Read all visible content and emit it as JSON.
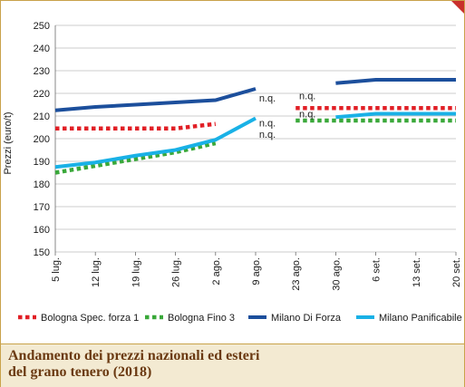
{
  "chart_data": {
    "type": "line",
    "ylabel": "Prezzi (euro/t)",
    "ylim": [
      150,
      250
    ],
    "yticks": [
      150,
      160,
      170,
      180,
      190,
      200,
      210,
      220,
      230,
      240,
      250
    ],
    "categories": [
      "5 lug.",
      "12 lug.",
      "19 lug.",
      "26 lug.",
      "2 ago.",
      "9 ago.",
      "23 ago.",
      "30 ago.",
      "6 set.",
      "13 set.",
      "20 set."
    ],
    "grid": "horizontal",
    "legend": "bottom",
    "series": [
      {
        "name": "Bologna Spec. forza 1",
        "color": "#e11f26",
        "style": "dotted",
        "values": [
          204.5,
          204.5,
          204.5,
          204.5,
          206.5,
          null,
          213.5,
          213.5,
          213.5,
          213.5,
          213.5
        ]
      },
      {
        "name": "Bologna Fino 3",
        "color": "#3aa83a",
        "style": "dotted",
        "values": [
          185,
          188,
          191,
          194,
          198,
          null,
          208,
          208,
          208,
          208,
          208
        ]
      },
      {
        "name": "Milano Di Forza",
        "color": "#1c4f9c",
        "style": "solid",
        "values": [
          212.5,
          214,
          215,
          216,
          217,
          222,
          null,
          224.5,
          226,
          226,
          226
        ]
      },
      {
        "name": "Milano Panificabile",
        "color": "#19b1e6",
        "style": "solid",
        "values": [
          187.5,
          189.5,
          192.5,
          195,
          199.5,
          209,
          null,
          209.5,
          211,
          211,
          211
        ]
      }
    ],
    "annotations": [
      {
        "text": "n.q.",
        "x": "9 ago.",
        "y": 218
      },
      {
        "text": "n.q.",
        "x": "9 ago.",
        "y": 207
      },
      {
        "text": "n.q.",
        "x": "9 ago.",
        "y": 202
      },
      {
        "text": "n.q.",
        "x": "23 ago.",
        "y": 219
      },
      {
        "text": "n.q.",
        "x": "23 ago.",
        "y": 211
      }
    ]
  },
  "caption": {
    "line1": "Andamento dei prezzi nazionali ed esteri",
    "line2": "del grano tenero (2018)"
  }
}
